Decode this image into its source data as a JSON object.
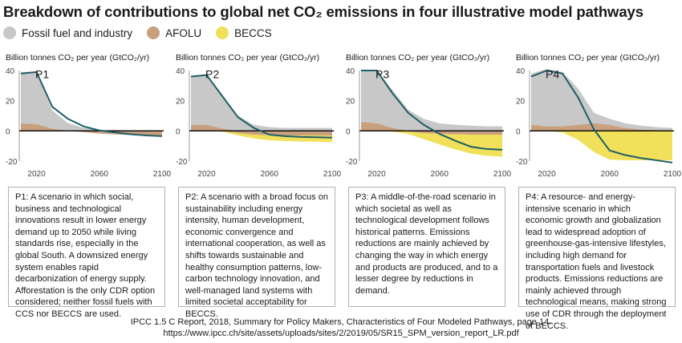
{
  "title": "Breakdown of contributions to global net CO₂ emissions in four illustrative model pathways",
  "legend": [
    {
      "label": "Fossil fuel and industry",
      "color": "#c8c8c8"
    },
    {
      "label": "AFOLU",
      "color": "#c9a07e"
    },
    {
      "label": "BECCS",
      "color": "#f0e05a"
    }
  ],
  "colors": {
    "net_line": "#1e5f6a",
    "fossil": "#c8c8c8",
    "afolu": "#c9a07e",
    "beccs": "#f0e05a",
    "axis": "#999999",
    "zero": "#000000"
  },
  "chart_data": [
    {
      "type": "area",
      "label": "P1",
      "ylabel": "Billion tonnes CO₂ per year (GtCO₂/yr)",
      "ylim": [
        -20,
        40
      ],
      "yticks": [
        "40",
        "20",
        "0",
        "-20"
      ],
      "xticks": [
        "2020",
        "2060",
        "2100"
      ],
      "x": [
        2010,
        2020,
        2030,
        2040,
        2050,
        2060,
        2070,
        2080,
        2090,
        2100
      ],
      "fossil": [
        34,
        35,
        12,
        5,
        2,
        0.8,
        0.5,
        0.3,
        0.2,
        0.2
      ],
      "afolu": [
        5,
        4.5,
        1.5,
        0.2,
        -0.8,
        -1.8,
        -2.3,
        -2.8,
        -3.2,
        -3.6
      ],
      "beccs": [
        0,
        0,
        0,
        0,
        0,
        0,
        0,
        0,
        0,
        0
      ],
      "net": [
        38,
        39,
        16,
        8,
        3,
        0.3,
        -1,
        -2.2,
        -3,
        -3.5
      ]
    },
    {
      "type": "area",
      "label": "P2",
      "ylabel": "Billion tonnes CO₂ per year (GtCO₂/yr)",
      "ylim": [
        -20,
        40
      ],
      "yticks": [
        "40",
        "20",
        "0",
        "-20"
      ],
      "xticks": [
        "2020",
        "2060",
        "2100"
      ],
      "x": [
        2010,
        2020,
        2030,
        2040,
        2050,
        2060,
        2070,
        2080,
        2090,
        2100
      ],
      "fossil": [
        32,
        33,
        22,
        10,
        4,
        2.5,
        2,
        2,
        2,
        2
      ],
      "afolu": [
        4,
        4,
        1.5,
        -1.5,
        -2.5,
        -3,
        -3,
        -3,
        -3,
        -3
      ],
      "beccs": [
        0,
        0,
        -0.5,
        -1.5,
        -2.5,
        -3.2,
        -3.7,
        -4,
        -4.2,
        -4.5
      ],
      "net": [
        36,
        37,
        23,
        9,
        2,
        -2.5,
        -3.5,
        -4,
        -4.2,
        -4.5
      ]
    },
    {
      "type": "area",
      "label": "P3",
      "ylabel": "Billion tonnes CO₂ per year (GtCO₂/yr)",
      "ylim": [
        -20,
        40
      ],
      "yticks": [
        "40",
        "20",
        "0",
        "-20"
      ],
      "xticks": [
        "2020",
        "2060",
        "2100"
      ],
      "x": [
        2010,
        2020,
        2030,
        2040,
        2050,
        2060,
        2070,
        2080,
        2090,
        2100
      ],
      "fossil": [
        34,
        35,
        25,
        14,
        8,
        5,
        4,
        3.5,
        3,
        3
      ],
      "afolu": [
        6,
        5,
        2,
        -0.5,
        -1.5,
        -2,
        -2.3,
        -2.5,
        -2.5,
        -2.5
      ],
      "beccs": [
        0,
        0,
        -0.5,
        -1.5,
        -4,
        -7,
        -10,
        -12.5,
        -14,
        -14.5
      ],
      "net": [
        40,
        40,
        25,
        12,
        4,
        -2,
        -6.5,
        -10.5,
        -12,
        -12.5
      ]
    },
    {
      "type": "area",
      "label": "P4",
      "ylabel": "Billion tonnes CO₂ per year (GtCO₂/yr)",
      "ylim": [
        -20,
        40
      ],
      "yticks": [
        "40",
        "20",
        "0",
        "-20"
      ],
      "xticks": [
        "2020",
        "2060",
        "2100"
      ],
      "x": [
        2010,
        2020,
        2030,
        2040,
        2050,
        2060,
        2070,
        2080,
        2090,
        2100
      ],
      "fossil": [
        34,
        38,
        36,
        24,
        7,
        4,
        3,
        2.5,
        2,
        2
      ],
      "afolu": [
        4,
        3,
        3,
        4,
        5,
        4,
        2,
        1,
        0.5,
        0
      ],
      "beccs": [
        0,
        0,
        -1,
        -6,
        -14,
        -19,
        -19.5,
        -19.5,
        -19.5,
        -19.5
      ],
      "net": [
        36,
        40,
        38,
        22,
        1,
        -13,
        -16,
        -18,
        -19.5,
        -21
      ]
    }
  ],
  "panels": [
    {
      "id": "P1:",
      "text": "A scenario in which social, business and technological innovations result in lower energy demand up to 2050 while living standards rise, especially in the global South. A downsized energy system enables rapid decarbonization of energy supply. Afforestation is the only CDR option considered; neither fossil fuels with CCS nor BECCS are used."
    },
    {
      "id": "P2:",
      "text": "A scenario with a broad focus on sustainability including energy intensity, human development, economic convergence and international cooperation, as well as shifts towards sustainable and healthy consumption patterns, low-carbon technology innovation, and well-managed land systems with limited societal acceptability for BECCS."
    },
    {
      "id": "P3:",
      "text": "A middle-of-the-road scenario in which societal as well as technological development follows historical patterns. Emissions reductions are mainly achieved by changing the way in which energy and products are produced, and to a lesser degree by reductions in demand."
    },
    {
      "id": "P4:",
      "text": "A resource- and energy-intensive scenario in which economic growth and globalization lead to widespread adoption of greenhouse-gas-intensive lifestyles, including high demand for transportation fuels and livestock products. Emissions reductions are mainly achieved through technological means, making strong use of CDR through the deployment of BECCS."
    }
  ],
  "citation": [
    "IPCC 1.5 C Report, 2018, Summary for Policy Makers, Characteristics of Four Modeled Pathways, page 14.",
    "https://www.ipcc.ch/site/assets/uploads/sites/2/2019/05/SR15_SPM_version_report_LR.pdf"
  ]
}
